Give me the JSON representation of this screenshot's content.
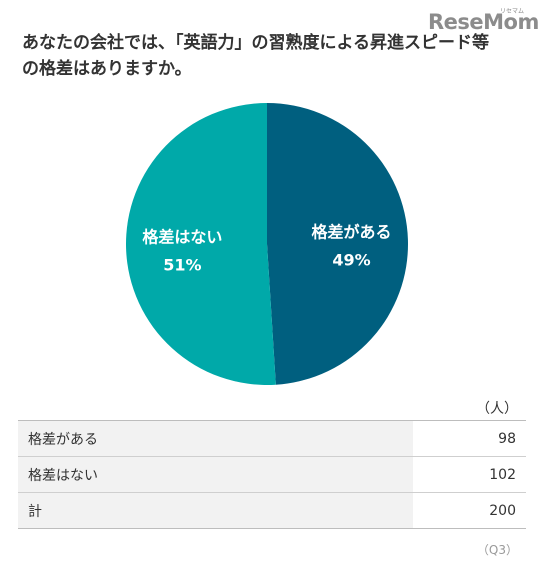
{
  "title": "あなたの会社では、「英語力」の習熟度による昇進スピード等の格差はありますか。",
  "logo": {
    "main": "ReseMom",
    "sub": "リセマム"
  },
  "chart_data": {
    "type": "pie",
    "title": "あなたの会社では、「英語力」の習熟度による昇進スピード等の格差はありますか。",
    "slices": [
      {
        "label": "格差がある",
        "value": 49,
        "value_label": "49%",
        "color": "#005f7f"
      },
      {
        "label": "格差はない",
        "value": 51,
        "value_label": "51%",
        "color": "#00a9a9"
      }
    ],
    "start": "12 o'clock",
    "direction": "clockwise"
  },
  "table": {
    "unit": "（人）",
    "rows": [
      {
        "label": "格差がある",
        "value": "98"
      },
      {
        "label": "格差はない",
        "value": "102"
      },
      {
        "label": "計",
        "value": "200"
      }
    ]
  },
  "source_note": "（Q3）"
}
